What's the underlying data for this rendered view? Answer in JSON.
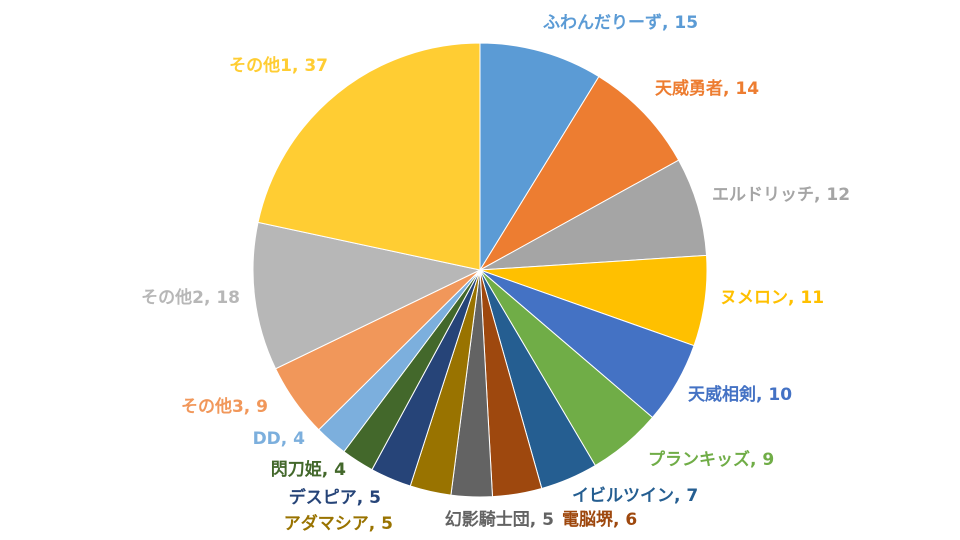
{
  "chart_data": {
    "type": "pie",
    "title": "",
    "categories": [
      "ふわんだりーず",
      "天威勇者",
      "エルドリッチ",
      "ヌメロン",
      "天威相剣",
      "プランキッズ",
      "イビルツイン",
      "電脳堺",
      "幻影騎士団",
      "アダマシア",
      "デスピア",
      "閃刀姫",
      "DD",
      "その他3",
      "その他2",
      "その他1"
    ],
    "values": [
      15,
      14,
      12,
      11,
      10,
      9,
      7,
      6,
      5,
      5,
      5,
      4,
      4,
      9,
      18,
      37
    ],
    "colors": [
      "#5B9BD5",
      "#ED7D31",
      "#A5A5A5",
      "#FFC000",
      "#4472C4",
      "#70AD47",
      "#255E91",
      "#9E480E",
      "#636363",
      "#997300",
      "#264478",
      "#43682B",
      "#7CAFDD",
      "#F1975A",
      "#B7B7B7",
      "#FFCD33"
    ],
    "start_angle_deg": 0,
    "direction": "clockwise",
    "labels": [
      {
        "text": "ふわんだりーず, 15",
        "color": "#5B9BD5"
      },
      {
        "text": "天威勇者, 14",
        "color": "#ED7D31"
      },
      {
        "text": "エルドリッチ, 12",
        "color": "#A5A5A5"
      },
      {
        "text": "ヌメロン, 11",
        "color": "#FFC000"
      },
      {
        "text": "天威相剣, 10",
        "color": "#4472C4"
      },
      {
        "text": "プランキッズ, 9",
        "color": "#70AD47"
      },
      {
        "text": "イビルツイン, 7",
        "color": "#255E91"
      },
      {
        "text": "電脳堺, 6",
        "color": "#9E480E"
      },
      {
        "text": "幻影騎士団, 5",
        "color": "#636363"
      },
      {
        "text": "アダマシア, 5",
        "color": "#997300"
      },
      {
        "text": "デスピア, 5",
        "color": "#264478"
      },
      {
        "text": "閃刀姫, 4",
        "color": "#43682B"
      },
      {
        "text": "DD, 4",
        "color": "#7CAFDD"
      },
      {
        "text": "その他3, 9",
        "color": "#F1975A"
      },
      {
        "text": "その他2, 18",
        "color": "#B7B7B7"
      },
      {
        "text": "その他1, 37",
        "color": "#FFCD33"
      }
    ]
  }
}
